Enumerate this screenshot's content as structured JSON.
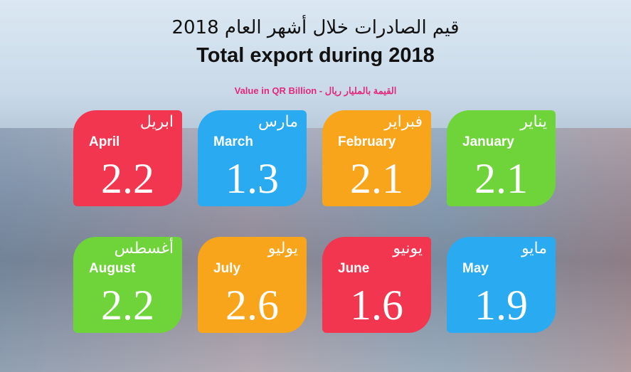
{
  "header": {
    "title_ar": "قيم الصادرات خلال أشهر العام 2018",
    "title_en": "Total export during 2018",
    "subtitle": "Value in QR Billion - القيمة بالمليار ريال"
  },
  "tiles": [
    {
      "name_ar": "يناير",
      "name_en": "January",
      "value": 2.1,
      "color": "#6fd33a"
    },
    {
      "name_ar": "فبراير",
      "name_en": "February",
      "value": 2.1,
      "color": "#f9a51c"
    },
    {
      "name_ar": "مارس",
      "name_en": "March",
      "value": 1.3,
      "color": "#2aaaf0"
    },
    {
      "name_ar": "ابريل",
      "name_en": "April",
      "value": 2.2,
      "color": "#f2364f"
    },
    {
      "name_ar": "مايو",
      "name_en": "May",
      "value": 1.9,
      "color": "#2aaaf0"
    },
    {
      "name_ar": "يونيو",
      "name_en": "June",
      "value": 1.6,
      "color": "#f2364f"
    },
    {
      "name_ar": "يوليو",
      "name_en": "July",
      "value": 2.6,
      "color": "#f9a51c"
    },
    {
      "name_ar": "أغسطس",
      "name_en": "August",
      "value": 2.2,
      "color": "#6fd33a"
    }
  ]
}
